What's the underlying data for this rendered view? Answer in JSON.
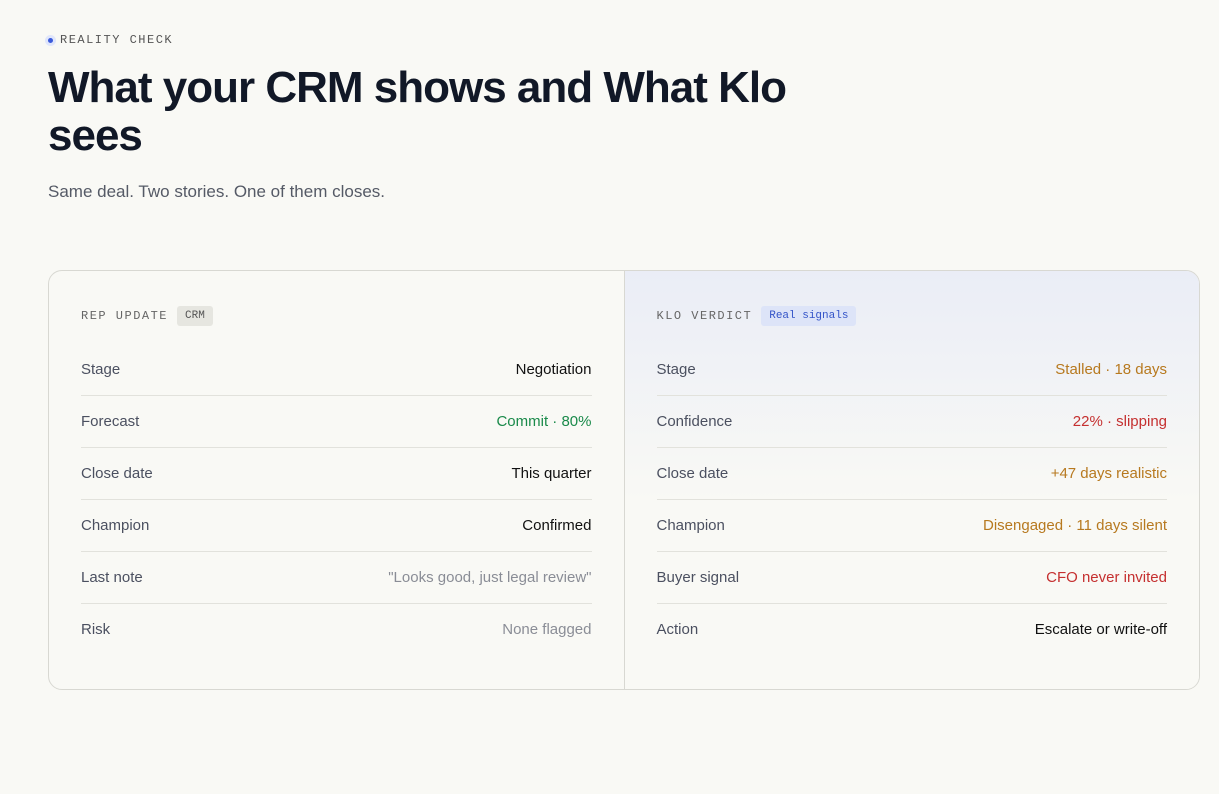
{
  "eyebrow": "REALITY CHECK",
  "title": "What your CRM shows and What Klo sees",
  "subtitle": "Same deal. Two stories. One of them closes.",
  "left": {
    "heading": "REP UPDATE",
    "badge": "CRM",
    "rows": [
      [
        "Stage",
        "Negotiation"
      ],
      [
        "Forecast",
        "Commit · 80%"
      ],
      [
        "Close date",
        "This quarter"
      ],
      [
        "Champion",
        "Confirmed"
      ],
      [
        "Last note",
        "\"Looks good, just legal review\""
      ],
      [
        "Risk",
        "None flagged"
      ]
    ]
  },
  "right": {
    "heading": "KLO VERDICT",
    "badge": "Real signals",
    "rows": [
      [
        "Stage",
        "Stalled · 18 days"
      ],
      [
        "Confidence",
        "22% · slipping"
      ],
      [
        "Close date",
        "+47 days realistic"
      ],
      [
        "Champion",
        "Disengaged · 11 days silent"
      ],
      [
        "Buyer signal",
        "CFO never invited"
      ],
      [
        "Action",
        "Escalate or write-off"
      ]
    ]
  }
}
